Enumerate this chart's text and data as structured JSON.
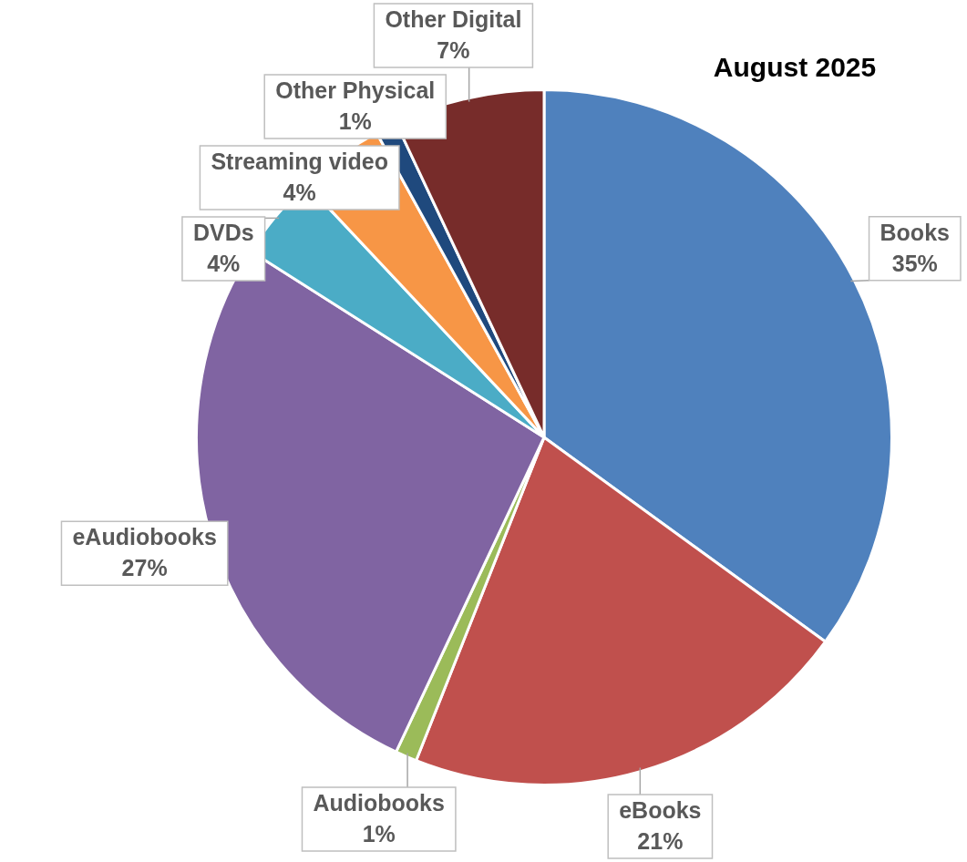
{
  "chart_data": {
    "type": "pie",
    "title": "August 2025",
    "categories": [
      "Books",
      "eBooks",
      "Audiobooks",
      "eAudiobooks",
      "DVDs",
      "Streaming video",
      "Other Physical",
      "Other Digital"
    ],
    "values": [
      35,
      21,
      1,
      27,
      4,
      4,
      1,
      7
    ],
    "value_labels": [
      "35%",
      "21%",
      "1%",
      "27%",
      "4%",
      "4%",
      "1%",
      "7%"
    ],
    "colors": [
      "#4f81bd",
      "#c0504d",
      "#9bbb59",
      "#8064a2",
      "#4bacc6",
      "#f79646",
      "#1f497d",
      "#772c2a"
    ],
    "legend": false
  }
}
